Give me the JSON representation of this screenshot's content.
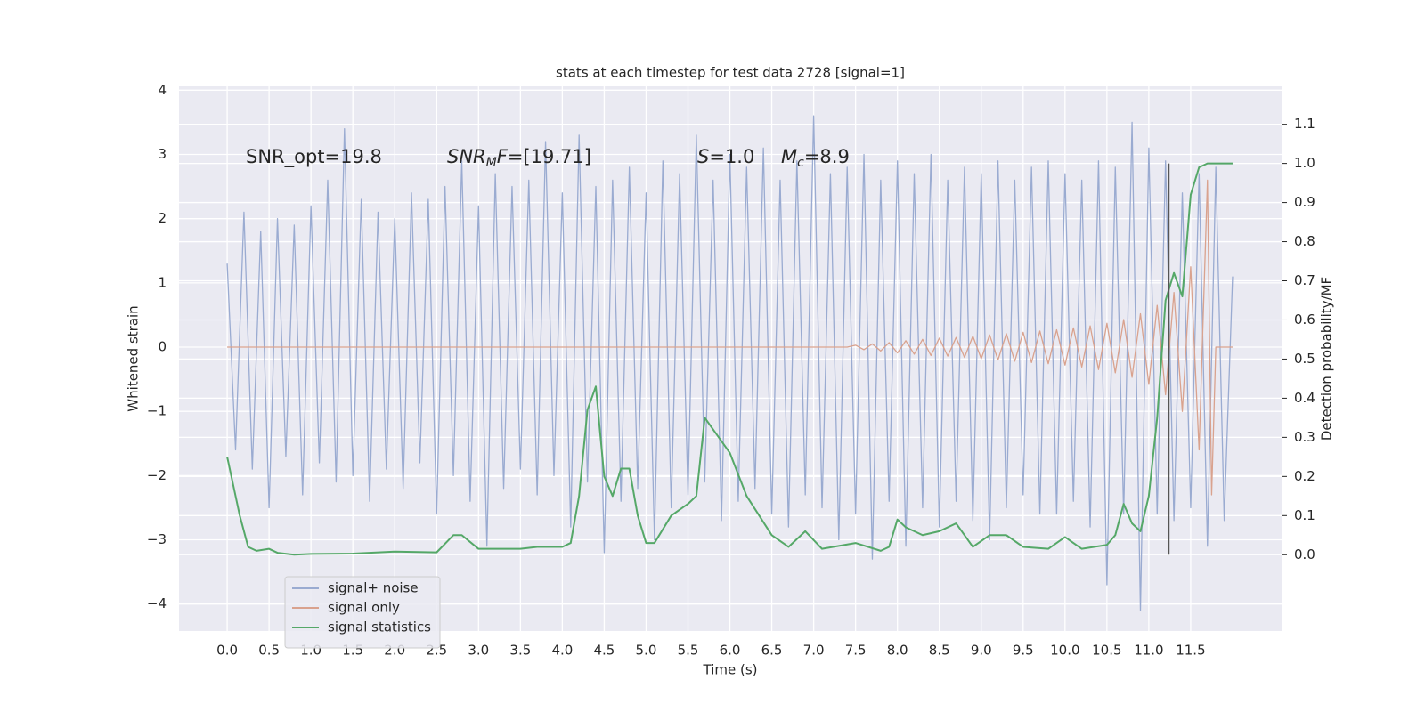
{
  "chart_data": {
    "type": "line",
    "title": "stats at each timestep for test data 2728 [signal=1]",
    "x_label": "Time (s)",
    "y_label": "Whitened strain",
    "y2_label": "Detection probability/MF",
    "background": "#eaeaf2",
    "grid": true,
    "legend": "lower left",
    "xlim": [
      -0.575,
      12.585
    ],
    "ylim": [
      -4.42,
      4.06
    ],
    "y2lim": [
      -0.195,
      1.197
    ],
    "xticks": [
      {
        "value": 0,
        "label": "0.0"
      },
      0.5,
      {
        "value": 1,
        "label": "1.0"
      },
      1.5,
      {
        "value": 2,
        "label": "2.0"
      },
      2.5,
      {
        "value": 3,
        "label": "3.0"
      },
      3.5,
      {
        "value": 4,
        "label": "4.0"
      },
      4.5,
      {
        "value": 5,
        "label": "5.0"
      },
      5.5,
      {
        "value": 6,
        "label": "6.0"
      },
      6.5,
      {
        "value": 7,
        "label": "7.0"
      },
      7.5,
      {
        "value": 8,
        "label": "8.0"
      },
      8.5,
      {
        "value": 9,
        "label": "9.0"
      },
      9.5,
      {
        "value": 10,
        "label": "10.0"
      },
      10.5,
      {
        "value": 11,
        "label": "11.0"
      },
      11.5
    ],
    "yticks": [
      {
        "value": -4,
        "label": "−4"
      },
      {
        "value": -3,
        "label": "−3"
      },
      {
        "value": -2,
        "label": "−2"
      },
      {
        "value": -1,
        "label": "−1"
      },
      0,
      1,
      2,
      3,
      4
    ],
    "y2ticks": [
      {
        "value": 0,
        "label": "0.0"
      },
      0.1,
      0.2,
      0.3,
      0.4,
      0.5,
      0.6,
      0.7,
      0.8,
      0.9,
      {
        "value": 1,
        "label": "1.0"
      },
      1.1
    ],
    "annotations": [
      [
        {
          "text": "SNR_opt=19.8",
          "style": "normal"
        }
      ],
      [
        {
          "text": "SNR",
          "style": "italic"
        },
        {
          "text": "M",
          "style": "italic-sub"
        },
        {
          "text": "F",
          "style": "italic"
        },
        {
          "text": "=[19.71]",
          "style": "normal"
        }
      ],
      [
        {
          "text": "S",
          "style": "italic"
        },
        {
          "text": "=1.0",
          "style": "normal"
        }
      ],
      [
        {
          "text": "M",
          "style": "italic"
        },
        {
          "text": "c",
          "style": "italic-sub"
        },
        {
          "text": "=8.9",
          "style": "normal"
        }
      ]
    ],
    "vline": {
      "x": 11.24,
      "y2": [
        0,
        1.0
      ],
      "color": "#555555"
    },
    "series": [
      {
        "name": "signal+ noise",
        "color": "#9aabd1",
        "axis": "y",
        "x": [
          0,
          0.1,
          0.2,
          0.3,
          0.4,
          0.5,
          0.6,
          0.7,
          0.8,
          0.9,
          1,
          1.1,
          1.2,
          1.3,
          1.4,
          1.5,
          1.6,
          1.7,
          1.8,
          1.9,
          2,
          2.1,
          2.2,
          2.3,
          2.4,
          2.5,
          2.6,
          2.7,
          2.8,
          2.9,
          3,
          3.1,
          3.2,
          3.3,
          3.4,
          3.5,
          3.6,
          3.7,
          3.8,
          3.9,
          4,
          4.1,
          4.2,
          4.3,
          4.4,
          4.5,
          4.6,
          4.7,
          4.8,
          4.9,
          5,
          5.1,
          5.2,
          5.3,
          5.4,
          5.5,
          5.6,
          5.7,
          5.8,
          5.9,
          6,
          6.1,
          6.2,
          6.3,
          6.4,
          6.5,
          6.6,
          6.7,
          6.8,
          6.9,
          7,
          7.1,
          7.2,
          7.3,
          7.4,
          7.5,
          7.6,
          7.7,
          7.8,
          7.9,
          8,
          8.1,
          8.2,
          8.3,
          8.4,
          8.5,
          8.6,
          8.7,
          8.8,
          8.9,
          9,
          9.1,
          9.2,
          9.3,
          9.4,
          9.5,
          9.6,
          9.7,
          9.8,
          9.9,
          10,
          10.1,
          10.2,
          10.3,
          10.4,
          10.5,
          10.6,
          10.7,
          10.8,
          10.9,
          11,
          11.1,
          11.2,
          11.3,
          11.4,
          11.5,
          11.6,
          11.7,
          11.8,
          11.9,
          12
        ],
        "values": [
          1.3,
          -1.6,
          2.1,
          -1.9,
          1.8,
          -2.5,
          2.0,
          -1.7,
          1.9,
          -2.3,
          2.2,
          -1.8,
          2.6,
          -2.1,
          3.4,
          -2.0,
          2.3,
          -2.4,
          2.1,
          -1.9,
          2.0,
          -2.2,
          2.4,
          -1.8,
          2.3,
          -2.6,
          2.5,
          -2.0,
          2.9,
          -2.4,
          2.2,
          -3.1,
          2.7,
          -2.2,
          2.5,
          -1.9,
          2.6,
          -2.3,
          3.2,
          -2.0,
          2.4,
          -2.8,
          3.3,
          -2.1,
          2.5,
          -3.2,
          2.6,
          -2.4,
          2.8,
          -2.2,
          2.4,
          -3.0,
          2.9,
          -2.5,
          2.7,
          -2.3,
          3.3,
          -2.1,
          2.6,
          -2.7,
          3.0,
          -2.4,
          2.8,
          -2.2,
          3.1,
          -2.6,
          2.6,
          -2.8,
          2.9,
          -2.3,
          3.6,
          -2.5,
          2.7,
          -3.0,
          2.8,
          -2.6,
          3.0,
          -3.3,
          2.6,
          -2.4,
          2.9,
          -3.1,
          2.7,
          -2.5,
          3.0,
          -2.8,
          2.6,
          -2.4,
          2.8,
          -2.7,
          2.7,
          -3.0,
          2.9,
          -2.5,
          2.6,
          -2.3,
          2.8,
          -2.6,
          2.9,
          -2.6,
          2.7,
          -2.4,
          2.6,
          -2.8,
          2.9,
          -3.7,
          2.8,
          -2.6,
          3.5,
          -4.1,
          3.1,
          -2.6,
          2.9,
          -2.7,
          2.4,
          -2.5,
          2.7,
          -3.1,
          2.8,
          -2.7,
          1.1
        ]
      },
      {
        "name": "signal only",
        "color": "#d9a28e",
        "axis": "y",
        "x": [
          0,
          7.4,
          7.5,
          7.6,
          7.7,
          7.8,
          7.9,
          8,
          8.1,
          8.2,
          8.3,
          8.4,
          8.5,
          8.6,
          8.7,
          8.8,
          8.9,
          9,
          9.1,
          9.2,
          9.3,
          9.4,
          9.5,
          9.6,
          9.7,
          9.8,
          9.9,
          10,
          10.1,
          10.2,
          10.3,
          10.4,
          10.5,
          10.6,
          10.7,
          10.8,
          10.9,
          11,
          11.1,
          11.2,
          11.3,
          11.4,
          11.5,
          11.6,
          11.7,
          11.75,
          11.8,
          12
        ],
        "values": [
          0,
          0,
          0.03,
          -0.04,
          0.05,
          -0.06,
          0.07,
          -0.09,
          0.1,
          -0.11,
          0.12,
          -0.13,
          0.14,
          -0.14,
          0.15,
          -0.16,
          0.17,
          -0.18,
          0.19,
          -0.2,
          0.21,
          -0.22,
          0.23,
          -0.24,
          0.25,
          -0.26,
          0.27,
          -0.28,
          0.3,
          -0.31,
          0.33,
          -0.35,
          0.37,
          -0.4,
          0.43,
          -0.47,
          0.52,
          -0.58,
          0.65,
          -0.74,
          0.85,
          -1.0,
          1.25,
          -1.6,
          2.6,
          -2.3,
          0,
          0
        ]
      },
      {
        "name": "signal statistics",
        "color": "#55a868",
        "axis": "y2",
        "x": [
          0,
          0.1,
          0.15,
          0.25,
          0.35,
          0.5,
          0.6,
          0.8,
          1,
          1.5,
          2,
          2.5,
          2.7,
          2.8,
          3,
          3.5,
          3.7,
          4,
          4.1,
          4.2,
          4.3,
          4.4,
          4.5,
          4.6,
          4.7,
          4.8,
          4.9,
          5,
          5.1,
          5.3,
          5.5,
          5.6,
          5.7,
          5.8,
          6,
          6.2,
          6.5,
          6.7,
          6.9,
          7.1,
          7.5,
          7.8,
          7.9,
          8,
          8.1,
          8.3,
          8.5,
          8.7,
          8.9,
          9.1,
          9.3,
          9.5,
          9.8,
          10,
          10.2,
          10.5,
          10.6,
          10.7,
          10.8,
          10.9,
          11,
          11.1,
          11.2,
          11.3,
          11.4,
          11.5,
          11.6,
          11.7,
          11.8,
          11.9,
          12
        ],
        "values": [
          0.25,
          0.15,
          0.1,
          0.02,
          0.01,
          0.015,
          0.005,
          0.0,
          0.002,
          0.003,
          0.008,
          0.006,
          0.05,
          0.05,
          0.015,
          0.015,
          0.02,
          0.02,
          0.03,
          0.15,
          0.37,
          0.43,
          0.2,
          0.15,
          0.22,
          0.22,
          0.1,
          0.03,
          0.03,
          0.1,
          0.13,
          0.15,
          0.35,
          0.32,
          0.26,
          0.15,
          0.05,
          0.02,
          0.06,
          0.015,
          0.03,
          0.01,
          0.02,
          0.09,
          0.07,
          0.05,
          0.06,
          0.08,
          0.02,
          0.05,
          0.05,
          0.02,
          0.015,
          0.045,
          0.015,
          0.025,
          0.05,
          0.13,
          0.08,
          0.06,
          0.15,
          0.35,
          0.65,
          0.72,
          0.66,
          0.92,
          0.99,
          1.0,
          1.0,
          1.0,
          1.0
        ]
      }
    ]
  }
}
